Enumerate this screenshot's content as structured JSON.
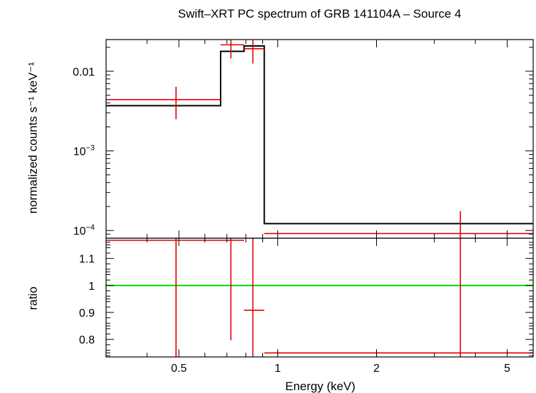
{
  "chart_data": {
    "type": "line",
    "title": "Swift–XRT PC spectrum of GRB 141104A – Source 4",
    "xlabel": "Energy (keV)",
    "x_scale": "log",
    "xlim": [
      0.3,
      6
    ],
    "x_ticks": [
      {
        "v": 0.5,
        "label": "0.5"
      },
      {
        "v": 1,
        "label": "1"
      },
      {
        "v": 2,
        "label": "2"
      },
      {
        "v": 5,
        "label": "5"
      }
    ],
    "colors": {
      "data": "#e00000",
      "model": "#000000",
      "unity": "#00e000",
      "axes": "#000000"
    },
    "grid": false,
    "top_panel": {
      "ylabel": "normalized counts s⁻¹ keV⁻¹",
      "y_scale": "log",
      "ylim": [
        8e-05,
        0.025
      ],
      "y_ticks": [
        {
          "v": 0.01,
          "label": "0.01",
          "sup": ""
        },
        {
          "v": 0.001,
          "label": "10",
          "sup": "−3"
        },
        {
          "v": 0.0001,
          "label": "10",
          "sup": "−4"
        }
      ],
      "data": [
        {
          "x": 0.49,
          "xlo": 0.3,
          "xhi": 0.67,
          "y": 0.0044,
          "ylo": 0.0025,
          "yhi": 0.0064
        },
        {
          "x": 0.72,
          "xlo": 0.67,
          "xhi": 0.79,
          "y": 0.0215,
          "ylo": 0.0145,
          "yhi": 0.03
        },
        {
          "x": 0.84,
          "xlo": 0.79,
          "xhi": 0.91,
          "y": 0.0192,
          "ylo": 0.0125,
          "yhi": 0.027
        },
        {
          "x": 3.6,
          "xlo": 0.91,
          "xhi": 6.0,
          "y": 9.15e-05,
          "ylo": 1e-05,
          "yhi": 0.000175
        }
      ],
      "model": [
        {
          "xlo": 0.3,
          "xhi": 0.67,
          "y": 0.0037
        },
        {
          "xlo": 0.67,
          "xhi": 0.79,
          "y": 0.0178
        },
        {
          "xlo": 0.79,
          "xhi": 0.91,
          "y": 0.0208
        },
        {
          "xlo": 0.91,
          "xhi": 6.0,
          "y": 0.000122
        }
      ]
    },
    "bottom_panel": {
      "ylabel": "ratio",
      "y_scale": "linear",
      "ylim": [
        0.735,
        1.175
      ],
      "y_ticks": [
        {
          "v": 0.8,
          "label": "0.8"
        },
        {
          "v": 0.9,
          "label": "0.9"
        },
        {
          "v": 1.0,
          "label": "1"
        },
        {
          "v": 1.1,
          "label": "1.1"
        }
      ],
      "unity_line": 1.0,
      "data": [
        {
          "x": 0.49,
          "xlo": 0.3,
          "xhi": 0.67,
          "y": 1.17,
          "ylo": 0.7,
          "yhi": 1.3
        },
        {
          "x": 0.72,
          "xlo": 0.67,
          "xhi": 0.79,
          "y": 1.17,
          "ylo": 0.797,
          "yhi": 1.3
        },
        {
          "x": 0.84,
          "xlo": 0.79,
          "xhi": 0.91,
          "y": 0.908,
          "ylo": 0.7,
          "yhi": 1.3
        },
        {
          "x": 3.6,
          "xlo": 0.91,
          "xhi": 6.0,
          "y": 0.75,
          "ylo": 0.7,
          "yhi": 1.3
        }
      ]
    }
  }
}
